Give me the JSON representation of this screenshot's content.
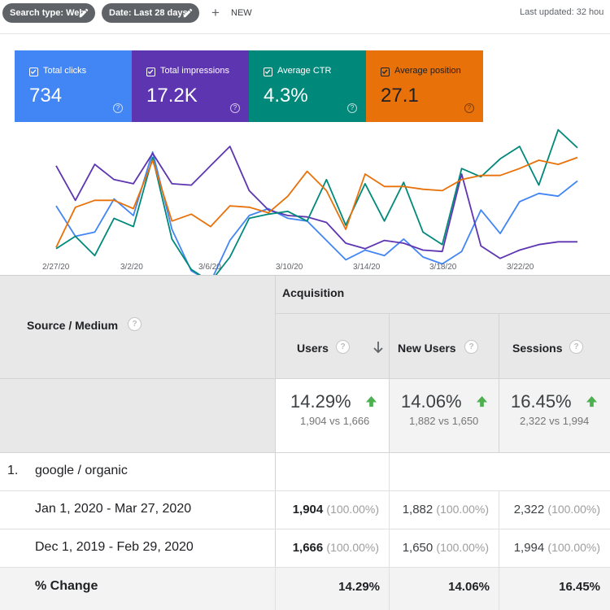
{
  "filters": {
    "search_type": "Search type: Web",
    "date": "Date: Last 28 days",
    "new_label": "NEW",
    "last_updated": "Last updated: 32 hou"
  },
  "metrics": [
    {
      "label": "Total clicks",
      "value": "734",
      "color": "#4285f4"
    },
    {
      "label": "Total impressions",
      "value": "17.2K",
      "color": "#5e35b1"
    },
    {
      "label": "Average CTR",
      "value": "4.3%",
      "color": "#00897b"
    },
    {
      "label": "Average position",
      "value": "27.1",
      "color": "#e8710a"
    }
  ],
  "chart_data": {
    "type": "line",
    "x_ticks": [
      "2/27/20",
      "3/2/20",
      "3/6/20",
      "3/10/20",
      "3/14/20",
      "3/18/20",
      "3/22/20"
    ],
    "y_axis": "not shown (normalized per series)",
    "series": [
      {
        "name": "Total clicks",
        "color": "#4285f4",
        "values": [
          0.57,
          0.35,
          0.38,
          0.62,
          0.5,
          0.96,
          0.4,
          0.1,
          0.02,
          0.32,
          0.5,
          0.55,
          0.48,
          0.46,
          0.32,
          0.18,
          0.25,
          0.21,
          0.33,
          0.2,
          0.15,
          0.24,
          0.54,
          0.37,
          0.6,
          0.66,
          0.64,
          0.75
        ]
      },
      {
        "name": "Total impressions",
        "color": "#5e35b1",
        "values": [
          0.86,
          0.61,
          0.87,
          0.76,
          0.73,
          0.95,
          0.73,
          0.72,
          0.86,
          1.0,
          0.68,
          0.54,
          0.5,
          0.49,
          0.45,
          0.3,
          0.26,
          0.32,
          0.3,
          0.25,
          0.24,
          0.8,
          0.28,
          0.19,
          0.25,
          0.29,
          0.31,
          0.31
        ]
      },
      {
        "name": "Average CTR",
        "color": "#00897b",
        "values": [
          0.26,
          0.35,
          0.21,
          0.48,
          0.42,
          0.92,
          0.33,
          0.11,
          0.02,
          0.2,
          0.48,
          0.51,
          0.53,
          0.46,
          0.76,
          0.43,
          0.73,
          0.46,
          0.74,
          0.38,
          0.29,
          0.84,
          0.78,
          0.91,
          1.0,
          0.72,
          1.12,
          0.99
        ]
      },
      {
        "name": "Average position",
        "color": "#e8710a",
        "values": [
          0.27,
          0.56,
          0.61,
          0.61,
          0.55,
          0.9,
          0.46,
          0.51,
          0.42,
          0.57,
          0.56,
          0.52,
          0.64,
          0.82,
          0.68,
          0.4,
          0.8,
          0.71,
          0.71,
          0.69,
          0.68,
          0.76,
          0.79,
          0.79,
          0.84,
          0.9,
          0.87,
          0.92
        ]
      }
    ]
  },
  "table": {
    "dimension_header": "Source / Medium",
    "group_header": "Acquisition",
    "columns": [
      "Users",
      "New Users",
      "Sessions"
    ],
    "totals": [
      {
        "pct": "14.29%",
        "compare": "1,904 vs 1,666"
      },
      {
        "pct": "14.06%",
        "compare": "1,882 vs 1,650"
      },
      {
        "pct": "16.45%",
        "compare": "2,322 vs 1,994"
      }
    ],
    "rows": [
      {
        "index": "1.",
        "name": "google / organic",
        "periods": [
          {
            "label": "Jan 1, 2020 - Mar 27, 2020",
            "values": [
              {
                "v": "1,904",
                "s": "(100.00%)"
              },
              {
                "v": "1,882",
                "s": "(100.00%)"
              },
              {
                "v": "2,322",
                "s": "(100.00%)"
              }
            ]
          },
          {
            "label": "Dec 1, 2019 - Feb 29, 2020",
            "values": [
              {
                "v": "1,666",
                "s": "(100.00%)"
              },
              {
                "v": "1,650",
                "s": "(100.00%)"
              },
              {
                "v": "1,994",
                "s": "(100.00%)"
              }
            ]
          }
        ],
        "change_label": "% Change",
        "change": [
          "14.29%",
          "14.06%",
          "16.45%"
        ]
      }
    ]
  },
  "icons": {
    "help": "?",
    "pencil": "pencil-icon",
    "plus": "+",
    "sort": "arrow-down-icon",
    "trend": "arrow-up-icon"
  }
}
